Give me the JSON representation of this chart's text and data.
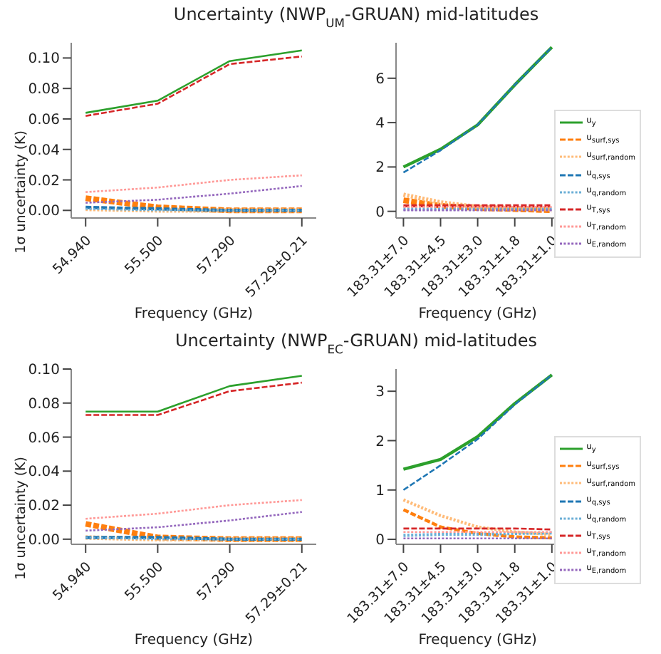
{
  "chart_data": [
    {
      "type": "line",
      "title": "Uncertainty (NWP$_{UM}$-GRUAN) mid-latitudes",
      "ylabel": "1σ uncertainty (K)",
      "xlabel": "Frequency (GHz)",
      "categories": [
        "54.940",
        "55.500",
        "57.290",
        "57.29±0.21"
      ],
      "ylim": [
        -0.005,
        0.11
      ],
      "yticks": [
        {
          "value": 0,
          "label": "0.00"
        },
        {
          "value": 0.02,
          "label": "0.02"
        },
        {
          "value": 0.04,
          "label": "0.04"
        },
        {
          "value": 0.06,
          "label": "0.06"
        },
        {
          "value": 0.08,
          "label": "0.08"
        },
        {
          "value": 0.1,
          "label": "0.10"
        }
      ],
      "grid": false,
      "legend": false,
      "marker": "none",
      "series": [
        {
          "color": "#2ca02c",
          "line_style": "solid",
          "values": [
            0.064,
            0.072,
            0.098,
            0.105
          ]
        },
        {
          "color": "#ff7f0e",
          "line_style": "dashed",
          "values": [
            0.008,
            0.002,
            0.0,
            0.0
          ]
        },
        {
          "color": "#ffbb78",
          "line_style": "dotted",
          "values": [
            0.001,
            0.0,
            0.0,
            0.0
          ]
        },
        {
          "color": "#1f77b4",
          "line_style": "dashed",
          "values": [
            0.002,
            0.001,
            0.0,
            0.0
          ]
        },
        {
          "color": "#6baed6",
          "line_style": "dotted",
          "values": [
            0.001,
            0.0,
            0.0,
            0.0
          ]
        },
        {
          "color": "#d62728",
          "line_style": "dashed",
          "values": [
            0.062,
            0.07,
            0.096,
            0.101
          ]
        },
        {
          "color": "#ff9896",
          "line_style": "dotted",
          "values": [
            0.012,
            0.015,
            0.02,
            0.023
          ]
        },
        {
          "color": "#9467bd",
          "line_style": "dotted",
          "values": [
            0.005,
            0.007,
            0.011,
            0.016
          ]
        }
      ]
    },
    {
      "type": "line",
      "xlabel": "Frequency (GHz)",
      "categories": [
        "183.31±7.0",
        "183.31±4.5",
        "183.31±3.0",
        "183.31±1.8",
        "183.31±1.0"
      ],
      "ylim": [
        -0.3,
        7.6
      ],
      "yticks": [
        0,
        2,
        4,
        6
      ],
      "grid": false,
      "legend": "right",
      "marker": "none",
      "series": [
        {
          "name": "u$_{y}$",
          "color": "#2ca02c",
          "line_style": "solid",
          "values": [
            2.0,
            2.8,
            3.9,
            5.7,
            7.4
          ]
        },
        {
          "name": "u$_{surf,sys}$",
          "color": "#ff7f0e",
          "line_style": "dashed",
          "values": [
            0.5,
            0.25,
            0.15,
            0.1,
            0.05
          ]
        },
        {
          "name": "u$_{surf,random}$",
          "color": "#ffbb78",
          "line_style": "dotted",
          "values": [
            0.75,
            0.4,
            0.2,
            0.15,
            0.1
          ]
        },
        {
          "name": "u$_{q,sys}$",
          "color": "#1f77b4",
          "line_style": "dashed",
          "values": [
            1.75,
            2.75,
            3.9,
            5.7,
            7.4
          ]
        },
        {
          "name": "u$_{q,random}$",
          "color": "#6baed6",
          "line_style": "dotted",
          "values": [
            0.1,
            0.1,
            0.1,
            0.1,
            0.1
          ]
        },
        {
          "name": "u$_{T,sys}$",
          "color": "#d62728",
          "line_style": "dashed",
          "values": [
            0.25,
            0.25,
            0.25,
            0.25,
            0.25
          ]
        },
        {
          "name": "u$_{T,random}$",
          "color": "#ff9896",
          "line_style": "dotted",
          "values": [
            0.2,
            0.2,
            0.2,
            0.2,
            0.2
          ]
        },
        {
          "name": "u$_{E,random}$",
          "color": "#9467bd",
          "line_style": "dotted",
          "values": [
            0.05,
            0.05,
            0.05,
            0.05,
            0.05
          ]
        }
      ]
    },
    {
      "type": "line",
      "title": "Uncertainty (NWP$_{EC}$-GRUAN) mid-latitudes",
      "ylabel": "1σ uncertainty (K)",
      "xlabel": "Frequency (GHz)",
      "categories": [
        "54.940",
        "55.500",
        "57.290",
        "57.29±0.21"
      ],
      "ylim": [
        -0.003,
        0.1
      ],
      "yticks": [
        {
          "value": 0,
          "label": "0.00"
        },
        {
          "value": 0.02,
          "label": "0.02"
        },
        {
          "value": 0.04,
          "label": "0.04"
        },
        {
          "value": 0.06,
          "label": "0.06"
        },
        {
          "value": 0.08,
          "label": "0.08"
        },
        {
          "value": 0.1,
          "label": "0.10"
        }
      ],
      "grid": false,
      "legend": false,
      "marker": "none",
      "series": [
        {
          "color": "#2ca02c",
          "line_style": "solid",
          "values": [
            0.075,
            0.075,
            0.09,
            0.096
          ]
        },
        {
          "color": "#ff7f0e",
          "line_style": "dashed",
          "values": [
            0.009,
            0.001,
            0.0,
            0.0
          ]
        },
        {
          "color": "#ffbb78",
          "line_style": "dotted",
          "values": [
            0.001,
            0.0,
            0.0,
            0.0
          ]
        },
        {
          "color": "#1f77b4",
          "line_style": "dashed",
          "values": [
            0.001,
            0.001,
            0.0,
            0.0
          ]
        },
        {
          "color": "#6baed6",
          "line_style": "dotted",
          "values": [
            0.001,
            0.0,
            0.0,
            0.0
          ]
        },
        {
          "color": "#d62728",
          "line_style": "dashed",
          "values": [
            0.073,
            0.073,
            0.087,
            0.092
          ]
        },
        {
          "color": "#ff9896",
          "line_style": "dotted",
          "values": [
            0.012,
            0.015,
            0.02,
            0.023
          ]
        },
        {
          "color": "#9467bd",
          "line_style": "dotted",
          "values": [
            0.005,
            0.007,
            0.011,
            0.016
          ]
        }
      ]
    },
    {
      "type": "line",
      "xlabel": "Frequency (GHz)",
      "categories": [
        "183.31±7.0",
        "183.31±4.5",
        "183.31±3.0",
        "183.31±1.8",
        "183.31±1.0"
      ],
      "ylim": [
        -0.1,
        3.45
      ],
      "yticks": [
        0,
        1,
        2,
        3
      ],
      "grid": false,
      "legend": "right",
      "marker": "none",
      "series": [
        {
          "name": "u$_{y}$",
          "color": "#2ca02c",
          "line_style": "solid",
          "values": [
            1.42,
            1.62,
            2.08,
            2.75,
            3.33
          ]
        },
        {
          "name": "u$_{surf,sys}$",
          "color": "#ff7f0e",
          "line_style": "dashed",
          "values": [
            0.6,
            0.25,
            0.12,
            0.05,
            0.03
          ]
        },
        {
          "name": "u$_{surf,random}$",
          "color": "#ffbb78",
          "line_style": "dotted",
          "values": [
            0.8,
            0.48,
            0.25,
            0.15,
            0.1
          ]
        },
        {
          "name": "u$_{q,sys}$",
          "color": "#1f77b4",
          "line_style": "dashed",
          "values": [
            1.0,
            1.5,
            2.03,
            2.73,
            3.33
          ]
        },
        {
          "name": "u$_{q,random}$",
          "color": "#6baed6",
          "line_style": "dotted",
          "values": [
            0.08,
            0.1,
            0.1,
            0.12,
            0.13
          ]
        },
        {
          "name": "u$_{T,sys}$",
          "color": "#d62728",
          "line_style": "dashed",
          "values": [
            0.22,
            0.22,
            0.22,
            0.22,
            0.2
          ]
        },
        {
          "name": "u$_{T,random}$",
          "color": "#ff9896",
          "line_style": "dotted",
          "values": [
            0.15,
            0.15,
            0.15,
            0.15,
            0.15
          ]
        },
        {
          "name": "u$_{E,random}$",
          "color": "#9467bd",
          "line_style": "dotted",
          "values": [
            0.02,
            0.02,
            0.02,
            0.02,
            0.02
          ]
        }
      ]
    }
  ]
}
